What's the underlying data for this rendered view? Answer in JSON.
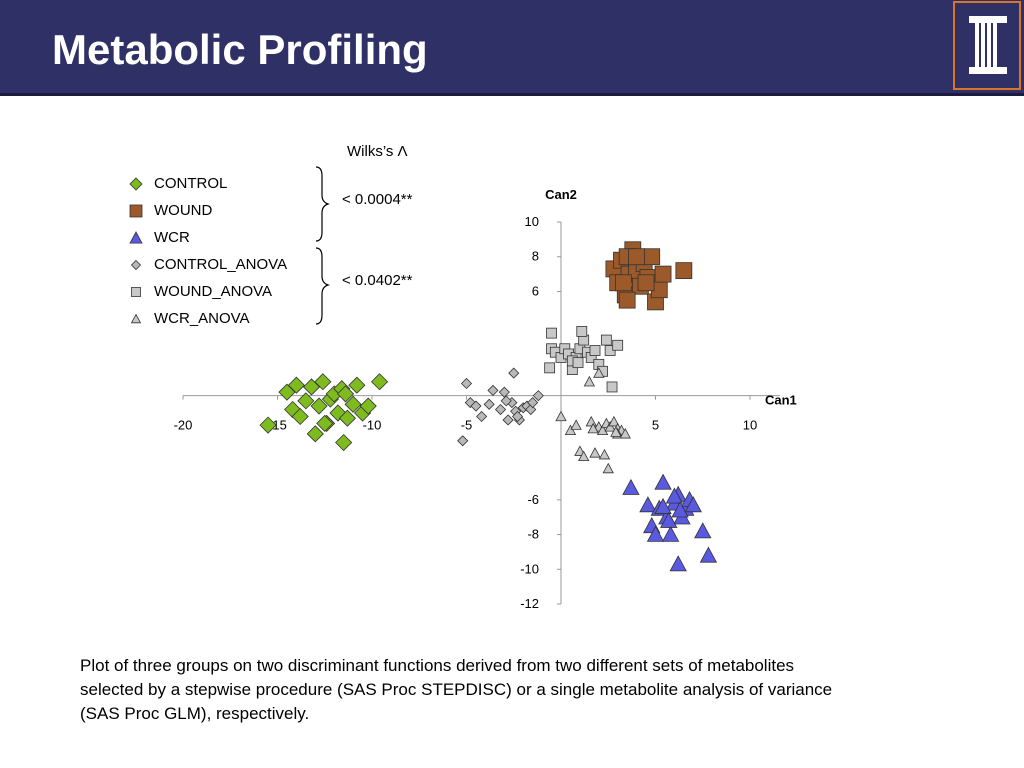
{
  "header": {
    "title": "Metabolic Profiling",
    "background": "#2f3066",
    "logo_border": "#d9742b"
  },
  "legend": {
    "wilks_title": "Wilks’s Λ",
    "entries": [
      {
        "label": "CONTROL",
        "marker": "diamond",
        "color": "#7dbb1f"
      },
      {
        "label": "WOUND",
        "marker": "square",
        "color": "#9c5a2a"
      },
      {
        "label": "WCR",
        "marker": "triangle",
        "color": "#5a5ae0"
      },
      {
        "label": "CONTROL_ANOVA",
        "marker": "diamond-small",
        "color": "#b8b8b8"
      },
      {
        "label": "WOUND_ANOVA",
        "marker": "square-small",
        "color": "#c8c8c8"
      },
      {
        "label": "WCR_ANOVA",
        "marker": "triangle-small",
        "color": "#c8c8c8"
      }
    ],
    "group1_pvalue": "< 0.0004**",
    "group2_pvalue": "< 0.0402**"
  },
  "chart_data": {
    "type": "scatter",
    "xlabel": "Can1",
    "ylabel": "Can2",
    "xlim": [
      -20,
      10
    ],
    "ylim": [
      -12,
      10
    ],
    "x_ticks": [
      "-20",
      "-15",
      "-10",
      "-5",
      "5",
      "10"
    ],
    "y_ticks": [
      "10",
      "8",
      "6",
      "-6",
      "-8",
      "-10",
      "-12"
    ],
    "grid": false,
    "series": [
      {
        "name": "CONTROL",
        "marker": "diamond",
        "color": "#7dbb1f",
        "size": "large",
        "points": [
          [
            -14.5,
            0.2
          ],
          [
            -14.2,
            -0.8
          ],
          [
            -13.8,
            -1.2
          ],
          [
            -13.5,
            -0.3
          ],
          [
            -13.2,
            0.5
          ],
          [
            -13.0,
            -2.2
          ],
          [
            -12.8,
            -0.6
          ],
          [
            -12.6,
            0.8
          ],
          [
            -12.4,
            -1.6
          ],
          [
            -12.2,
            -0.2
          ],
          [
            -12.0,
            0.1
          ],
          [
            -11.8,
            -1.0
          ],
          [
            -11.6,
            0.4
          ],
          [
            -11.5,
            -2.7
          ],
          [
            -11.3,
            -1.3
          ],
          [
            -11.0,
            -0.5
          ],
          [
            -10.8,
            0.6
          ],
          [
            -10.5,
            -1.0
          ],
          [
            -10.2,
            -0.6
          ],
          [
            -9.6,
            0.8
          ],
          [
            -15.5,
            -1.7
          ],
          [
            -14.0,
            0.6
          ],
          [
            -12.5,
            -1.6
          ],
          [
            -11.4,
            0.1
          ]
        ]
      },
      {
        "name": "WOUND",
        "marker": "square",
        "color": "#9c5a2a",
        "size": "large",
        "points": [
          [
            2.8,
            7.3
          ],
          [
            3.0,
            6.5
          ],
          [
            3.2,
            7.8
          ],
          [
            3.4,
            5.8
          ],
          [
            3.6,
            7.0
          ],
          [
            3.8,
            8.4
          ],
          [
            4.0,
            7.2
          ],
          [
            4.2,
            6.3
          ],
          [
            4.4,
            7.6
          ],
          [
            4.6,
            6.8
          ],
          [
            4.8,
            8.0
          ],
          [
            5.0,
            5.4
          ],
          [
            5.2,
            6.1
          ],
          [
            5.4,
            7.0
          ],
          [
            3.5,
            8.0
          ],
          [
            3.5,
            5.5
          ],
          [
            4.5,
            6.5
          ],
          [
            4.0,
            8.0
          ],
          [
            6.5,
            7.2
          ],
          [
            3.3,
            6.5
          ]
        ]
      },
      {
        "name": "WCR",
        "marker": "triangle",
        "color": "#5a5ae0",
        "size": "large",
        "points": [
          [
            3.7,
            -5.3
          ],
          [
            4.6,
            -6.3
          ],
          [
            4.8,
            -7.5
          ],
          [
            5.0,
            -8.0
          ],
          [
            5.2,
            -6.5
          ],
          [
            5.4,
            -5.0
          ],
          [
            5.6,
            -7.0
          ],
          [
            5.8,
            -8.0
          ],
          [
            6.0,
            -6.2
          ],
          [
            6.2,
            -5.7
          ],
          [
            6.4,
            -7.0
          ],
          [
            6.6,
            -6.5
          ],
          [
            6.8,
            -6.0
          ],
          [
            7.0,
            -6.3
          ],
          [
            7.5,
            -7.8
          ],
          [
            7.8,
            -9.2
          ],
          [
            6.2,
            -9.7
          ],
          [
            5.4,
            -6.4
          ],
          [
            6.0,
            -5.8
          ],
          [
            5.7,
            -7.2
          ],
          [
            6.3,
            -6.6
          ]
        ]
      },
      {
        "name": "CONTROL_ANOVA",
        "marker": "diamond",
        "color": "#b8b8b8",
        "size": "small",
        "points": [
          [
            -5.0,
            0.7
          ],
          [
            -4.8,
            -0.4
          ],
          [
            -4.5,
            -0.6
          ],
          [
            -4.2,
            -1.2
          ],
          [
            -3.6,
            0.3
          ],
          [
            -3.2,
            -0.8
          ],
          [
            -3.0,
            0.2
          ],
          [
            -2.8,
            -1.4
          ],
          [
            -2.6,
            -0.4
          ],
          [
            -2.4,
            -0.9
          ],
          [
            -2.2,
            -1.4
          ],
          [
            -2.0,
            -0.7
          ],
          [
            -1.8,
            -0.6
          ],
          [
            -1.6,
            -0.8
          ],
          [
            -1.5,
            -0.4
          ],
          [
            -1.2,
            0.0
          ],
          [
            -2.5,
            1.3
          ],
          [
            -5.2,
            -2.6
          ],
          [
            -3.8,
            -0.5
          ],
          [
            -2.9,
            -0.3
          ],
          [
            -2.3,
            -1.2
          ]
        ]
      },
      {
        "name": "WOUND_ANOVA",
        "marker": "square",
        "color": "#c8c8c8",
        "size": "small",
        "points": [
          [
            -0.5,
            3.6
          ],
          [
            -0.5,
            2.7
          ],
          [
            -0.3,
            2.5
          ],
          [
            0.0,
            2.2
          ],
          [
            0.2,
            2.7
          ],
          [
            0.4,
            2.4
          ],
          [
            0.6,
            1.5
          ],
          [
            0.8,
            2.2
          ],
          [
            1.0,
            2.7
          ],
          [
            1.2,
            3.2
          ],
          [
            1.4,
            2.5
          ],
          [
            1.6,
            2.2
          ],
          [
            1.8,
            2.6
          ],
          [
            2.0,
            1.8
          ],
          [
            2.2,
            1.4
          ],
          [
            2.4,
            3.2
          ],
          [
            2.6,
            2.6
          ],
          [
            3.0,
            2.9
          ],
          [
            2.7,
            0.5
          ],
          [
            0.6,
            2.0
          ],
          [
            1.1,
            3.7
          ],
          [
            -0.6,
            1.6
          ],
          [
            0.9,
            1.9
          ]
        ]
      },
      {
        "name": "WCR_ANOVA",
        "marker": "triangle",
        "color": "#c8c8c8",
        "size": "small",
        "points": [
          [
            0.0,
            -1.2
          ],
          [
            0.5,
            -2.0
          ],
          [
            0.8,
            -1.7
          ],
          [
            1.0,
            -3.2
          ],
          [
            1.2,
            -3.5
          ],
          [
            1.6,
            -1.5
          ],
          [
            1.8,
            -3.3
          ],
          [
            2.0,
            -1.8
          ],
          [
            2.2,
            -2.0
          ],
          [
            2.4,
            -1.6
          ],
          [
            2.6,
            -1.8
          ],
          [
            2.8,
            -1.5
          ],
          [
            3.0,
            -1.9
          ],
          [
            3.2,
            -2.0
          ],
          [
            2.5,
            -4.2
          ],
          [
            3.0,
            -2.2
          ],
          [
            1.7,
            -1.9
          ],
          [
            1.5,
            0.8
          ],
          [
            2.0,
            1.3
          ],
          [
            2.3,
            -3.4
          ],
          [
            2.9,
            -2.1
          ],
          [
            3.4,
            -2.2
          ]
        ]
      }
    ]
  },
  "caption": "Plot of three groups on two discriminant functions derived from two different sets of metabolites selected by a stepwise procedure (SAS Proc STEPDISC) or a single metabolite analysis of variance (SAS Proc GLM), respectively."
}
